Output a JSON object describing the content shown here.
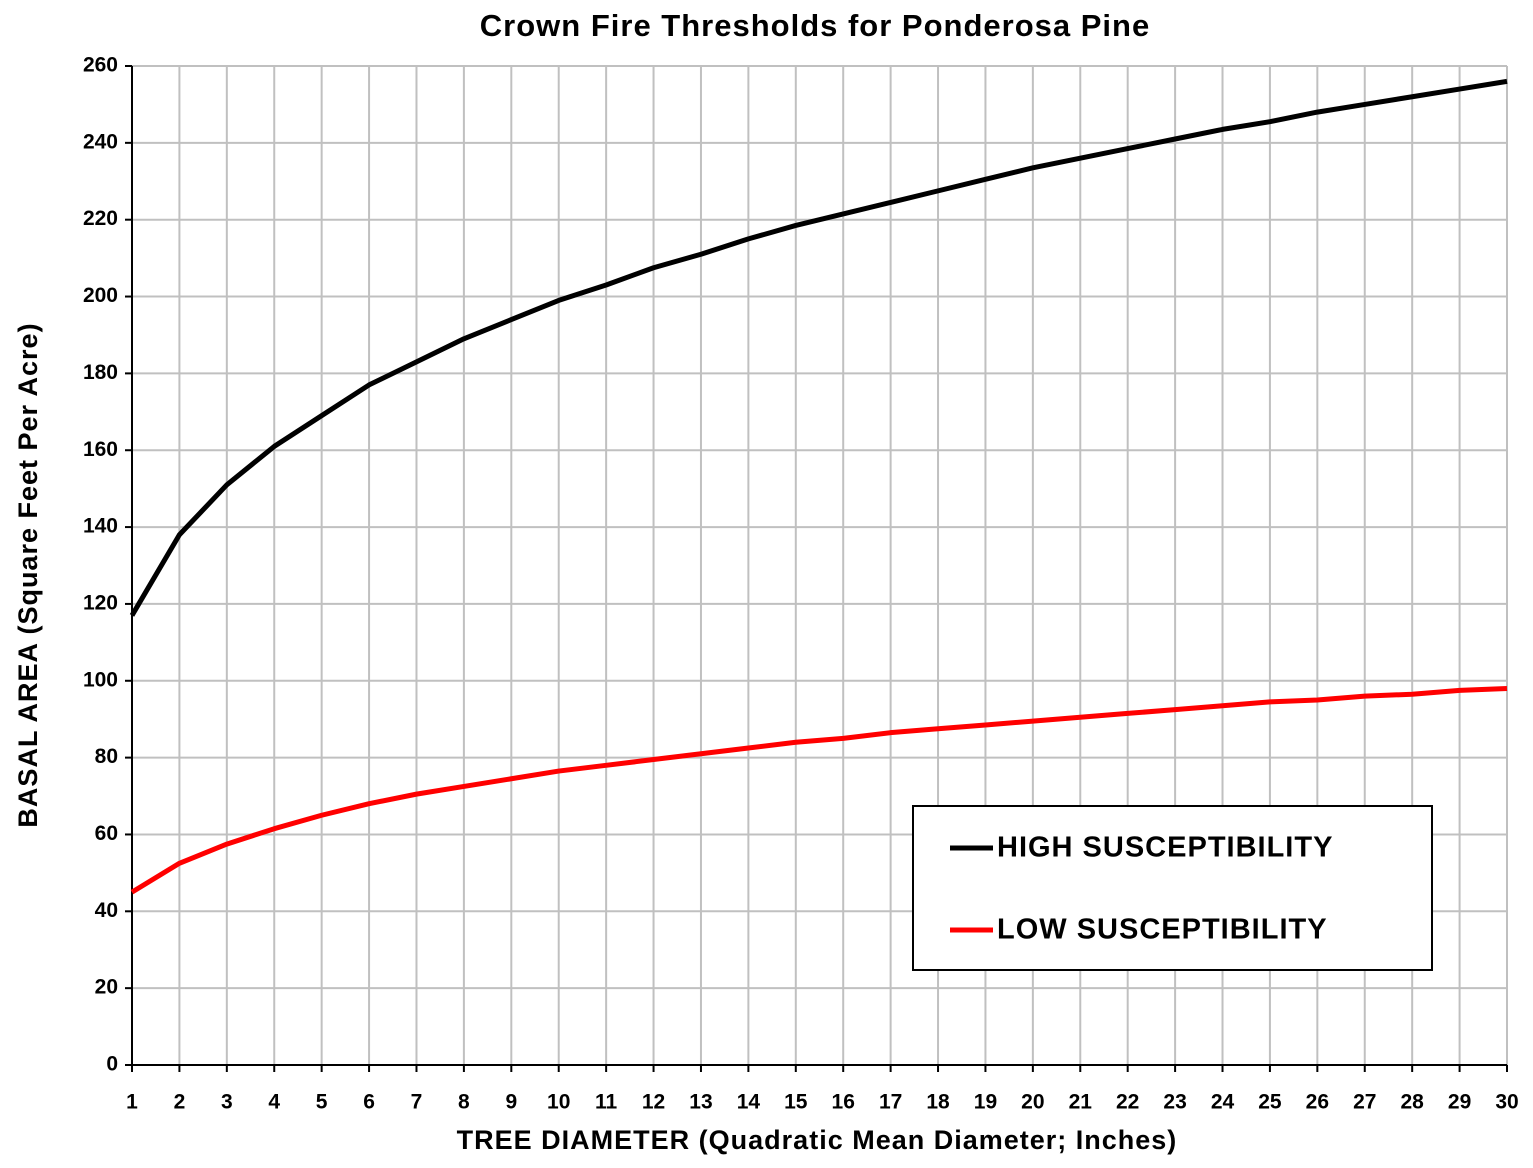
{
  "chart_data": {
    "type": "line",
    "title": "Crown Fire Thresholds for Ponderosa Pine",
    "x_label": "TREE DIAMETER (Quadratic Mean Diameter; Inches)",
    "y_label": "BASAL AREA (Square Feet Per Acre)",
    "x": [
      1,
      2,
      3,
      4,
      5,
      6,
      7,
      8,
      9,
      10,
      11,
      12,
      13,
      14,
      15,
      16,
      17,
      18,
      19,
      20,
      21,
      22,
      23,
      24,
      25,
      26,
      27,
      28,
      29,
      30
    ],
    "series": [
      {
        "name": "HIGH SUSCEPTIBILITY",
        "color": "#000000",
        "values": [
          117,
          138,
          151,
          161,
          169,
          177,
          183,
          189,
          194,
          199,
          203,
          207.5,
          211,
          215,
          218.5,
          221.5,
          224.5,
          227.5,
          230.5,
          233.5,
          236,
          238.5,
          241,
          243.5,
          245.5,
          248,
          250,
          252,
          254,
          256
        ]
      },
      {
        "name": "LOW SUSCEPTIBILITY",
        "color": "#ff0000",
        "values": [
          45,
          52.5,
          57.5,
          61.5,
          65,
          68,
          70.5,
          72.5,
          74.5,
          76.5,
          78,
          79.5,
          81,
          82.5,
          84,
          85,
          86.5,
          87.5,
          88.5,
          89.5,
          90.5,
          91.5,
          92.5,
          93.5,
          94.5,
          95,
          96,
          96.5,
          97.5,
          98
        ]
      }
    ],
    "xlim": [
      1,
      30
    ],
    "xticks": [
      1,
      2,
      3,
      4,
      5,
      6,
      7,
      8,
      9,
      10,
      11,
      12,
      13,
      14,
      15,
      16,
      17,
      18,
      19,
      20,
      21,
      22,
      23,
      24,
      25,
      26,
      27,
      28,
      29,
      30
    ],
    "ylim": [
      0,
      260
    ],
    "yticks": [
      0,
      20,
      40,
      60,
      80,
      100,
      120,
      140,
      160,
      180,
      200,
      220,
      240,
      260
    ],
    "grid": true,
    "legend_position": "lower right"
  }
}
